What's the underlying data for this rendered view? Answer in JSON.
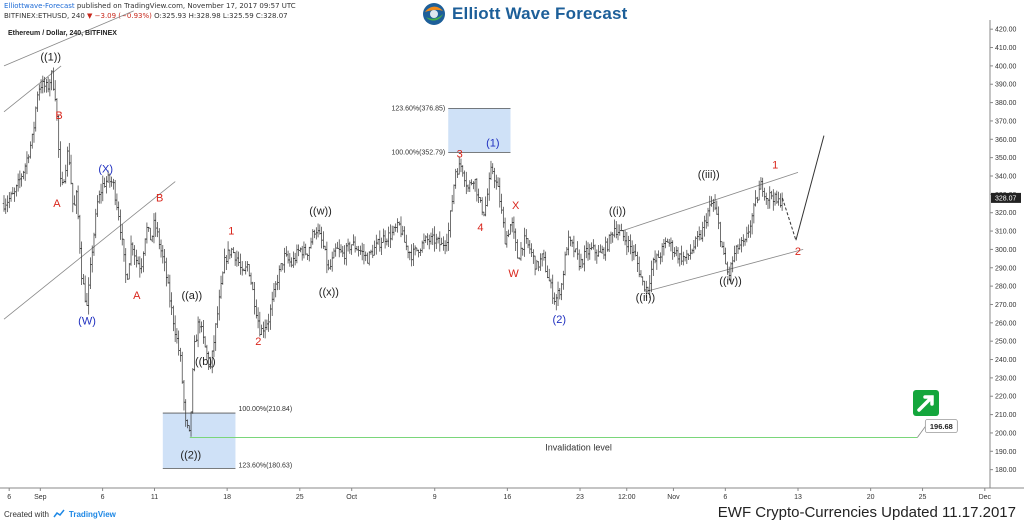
{
  "header": {
    "publisher": "Elliottwave-Forecast",
    "published_text": " published on TradingView.com, November 17, 2017 09:57 UTC",
    "ticker": "BITFINEX:ETHUSD, 240",
    "change": "▼ −3.09 (−0.93%)",
    "ohlc": "O:325.93 H:328.98 L:325.59 C:328.07"
  },
  "logo": {
    "text": "Elliott Wave Forecast"
  },
  "footer": {
    "created_with": "Created with",
    "tv_name": "TradingView",
    "title": "EWF Crypto-Currencies Updated 11.17.2017"
  },
  "colors": {
    "bull_box": "#cfe1f7",
    "wave_red": "#d9261c",
    "wave_blue": "#2030c0",
    "invalidation": "#7ad67a",
    "badge_green": "#14a63c"
  },
  "chart_data": {
    "type": "candlestick",
    "symbol_title": "Ethereum / Dollar, 240, BITFINEX",
    "ylim": [
      170,
      425
    ],
    "y_ticks": [
      180,
      190,
      200,
      210,
      220,
      230,
      240,
      250,
      260,
      270,
      280,
      290,
      300,
      310,
      320,
      330,
      340,
      350,
      360,
      370,
      380,
      390,
      400,
      410,
      420
    ],
    "y_tick_labels": [
      "180.00",
      "190.00",
      "200.00",
      "210.00",
      "220.00",
      "230.00",
      "240.00",
      "250.00",
      "260.00",
      "270.00",
      "280.00",
      "290.00",
      "300.00",
      "310.00",
      "320.00",
      "330.00",
      "340.00",
      "350.00",
      "360.00",
      "370.00",
      "380.00",
      "390.00",
      "400.00",
      "410.00",
      "420.00"
    ],
    "x_ticks": [
      {
        "label": "6",
        "x": -3
      },
      {
        "label": "Sep",
        "x": 0
      },
      {
        "label": "6",
        "x": 6
      },
      {
        "label": "11",
        "x": 11
      },
      {
        "label": "18",
        "x": 18
      },
      {
        "label": "25",
        "x": 25
      },
      {
        "label": "Oct",
        "x": 30
      },
      {
        "label": "9",
        "x": 38
      },
      {
        "label": "16",
        "x": 45
      },
      {
        "label": "23",
        "x": 52
      },
      {
        "label": "12:00",
        "x": 56.5
      },
      {
        "label": "Nov",
        "x": 61
      },
      {
        "label": "6",
        "x": 66
      },
      {
        "label": "13",
        "x": 73
      },
      {
        "label": "20",
        "x": 80
      },
      {
        "label": "25",
        "x": 85
      },
      {
        "label": "Dec",
        "x": 91
      }
    ],
    "xlim": [
      -3.5,
      91.5
    ],
    "price_path": [
      [
        -3.5,
        325
      ],
      [
        -2.5,
        330
      ],
      [
        -1.5,
        345
      ],
      [
        -0.7,
        362
      ],
      [
        -0.3,
        385
      ],
      [
        0,
        390
      ],
      [
        0.7,
        388
      ],
      [
        1.1,
        395
      ],
      [
        1.5,
        382
      ],
      [
        2,
        330
      ],
      [
        2.7,
        355
      ],
      [
        3.2,
        320
      ],
      [
        3.5,
        330
      ],
      [
        4,
        285
      ],
      [
        4.5,
        268
      ],
      [
        5,
        300
      ],
      [
        5.5,
        325
      ],
      [
        6,
        335
      ],
      [
        6.5,
        338
      ],
      [
        7,
        336
      ],
      [
        7.6,
        318
      ],
      [
        8.3,
        282
      ],
      [
        8.8,
        305
      ],
      [
        9.2,
        295
      ],
      [
        9.7,
        290
      ],
      [
        10.2,
        312
      ],
      [
        10.7,
        305
      ],
      [
        11,
        315
      ],
      [
        11.6,
        300
      ],
      [
        12,
        290
      ],
      [
        12.7,
        265
      ],
      [
        13.5,
        240
      ],
      [
        14,
        205
      ],
      [
        14.4,
        198
      ],
      [
        14.8,
        245
      ],
      [
        15.3,
        262
      ],
      [
        15.8,
        248
      ],
      [
        16.4,
        235
      ],
      [
        17,
        262
      ],
      [
        17.8,
        295
      ],
      [
        18.4,
        300
      ],
      [
        19,
        295
      ],
      [
        19.5,
        285
      ],
      [
        20,
        292
      ],
      [
        20.7,
        270
      ],
      [
        21.2,
        255
      ],
      [
        22,
        262
      ],
      [
        22.8,
        283
      ],
      [
        23.5,
        296
      ],
      [
        24.2,
        292
      ],
      [
        25,
        300
      ],
      [
        25.7,
        298
      ],
      [
        26.5,
        312
      ],
      [
        27.2,
        303
      ],
      [
        27.8,
        288
      ],
      [
        28.5,
        300
      ],
      [
        29.2,
        297
      ],
      [
        30,
        303
      ],
      [
        30.7,
        300
      ],
      [
        31.5,
        295
      ],
      [
        32.3,
        301
      ],
      [
        33,
        306
      ],
      [
        33.8,
        308
      ],
      [
        34.6,
        313
      ],
      [
        35.2,
        302
      ],
      [
        35.8,
        297
      ],
      [
        36.5,
        301
      ],
      [
        37.2,
        305
      ],
      [
        38,
        305
      ],
      [
        38.7,
        302
      ],
      [
        39.3,
        308
      ],
      [
        40,
        343
      ],
      [
        40.6,
        346
      ],
      [
        41.2,
        333
      ],
      [
        41.8,
        340
      ],
      [
        42.3,
        325
      ],
      [
        42.8,
        320
      ],
      [
        43.5,
        345
      ],
      [
        44.2,
        330
      ],
      [
        44.8,
        305
      ],
      [
        45.4,
        315
      ],
      [
        46,
        295
      ],
      [
        46.6,
        305
      ],
      [
        47.2,
        300
      ],
      [
        47.8,
        290
      ],
      [
        48.4,
        296
      ],
      [
        49,
        283
      ],
      [
        49.6,
        272
      ],
      [
        50.2,
        280
      ],
      [
        50.8,
        305
      ],
      [
        51.4,
        300
      ],
      [
        52,
        292
      ],
      [
        52.6,
        298
      ],
      [
        53.2,
        300
      ],
      [
        53.9,
        297
      ],
      [
        54.6,
        302
      ],
      [
        55.3,
        312
      ],
      [
        56,
        308
      ],
      [
        56.7,
        303
      ],
      [
        57.4,
        295
      ],
      [
        58,
        282
      ],
      [
        58.5,
        278
      ],
      [
        59,
        292
      ],
      [
        59.7,
        297
      ],
      [
        60.4,
        305
      ],
      [
        61,
        300
      ],
      [
        61.6,
        296
      ],
      [
        62.3,
        295
      ],
      [
        63,
        302
      ],
      [
        63.7,
        308
      ],
      [
        64.3,
        320
      ],
      [
        64.8,
        326
      ],
      [
        65.3,
        315
      ],
      [
        65.8,
        297
      ],
      [
        66.3,
        285
      ],
      [
        66.8,
        296
      ],
      [
        67.3,
        302
      ],
      [
        67.9,
        303
      ],
      [
        68.5,
        316
      ],
      [
        69,
        327
      ],
      [
        69.5,
        336
      ],
      [
        70,
        328
      ],
      [
        70.5,
        330
      ],
      [
        71,
        325
      ],
      [
        71.5,
        328
      ]
    ],
    "projection_dashed": [
      [
        71.5,
        328
      ],
      [
        72.8,
        305
      ]
    ],
    "projection_solid": [
      [
        72.8,
        305
      ],
      [
        75.5,
        362
      ]
    ],
    "channels": [
      {
        "from": [
          -3.5,
          375
        ],
        "to": [
          2,
          400
        ]
      },
      {
        "from": [
          -3.5,
          262
        ],
        "to": [
          13,
          337
        ]
      },
      {
        "from": [
          -3.5,
          400
        ],
        "to": [
          9,
          430
        ]
      },
      {
        "from": [
          56,
          310
        ],
        "to": [
          73,
          342
        ]
      },
      {
        "from": [
          58.3,
          277
        ],
        "to": [
          73.5,
          300
        ]
      }
    ],
    "invalidation": {
      "x1": 14.4,
      "x2": 84.5,
      "y": 197.5,
      "label": "Invalidation level",
      "price": "196.68"
    },
    "boxes": [
      {
        "x1": 11.8,
        "x2": 18.8,
        "y1": 180.63,
        "y2": 210.84,
        "top_label": "100.00%(210.84)",
        "bottom_label": "123.60%(180.63)"
      },
      {
        "x1": 39.3,
        "x2": 45.3,
        "y1": 352.79,
        "y2": 376.85,
        "top_label": "123.60%(376.85)",
        "bottom_label": "100.00%(352.79)"
      }
    ],
    "last_price_label": "328.07",
    "wave_labels": [
      {
        "text": "((1))",
        "x": 1.0,
        "y": 403,
        "color": "black"
      },
      {
        "text": "B",
        "x": 1.8,
        "y": 371,
        "color": "red"
      },
      {
        "text": "A",
        "x": 1.6,
        "y": 323,
        "color": "red"
      },
      {
        "text": "(W)",
        "x": 4.5,
        "y": 259,
        "color": "blue"
      },
      {
        "text": "(X)",
        "x": 6.3,
        "y": 342,
        "color": "blue"
      },
      {
        "text": "A",
        "x": 9.3,
        "y": 273,
        "color": "red"
      },
      {
        "text": "B",
        "x": 11.5,
        "y": 326,
        "color": "red"
      },
      {
        "text": "((a))",
        "x": 14.6,
        "y": 273,
        "color": "black"
      },
      {
        "text": "((b))",
        "x": 15.9,
        "y": 237,
        "color": "black"
      },
      {
        "text": "((2))",
        "x": 14.5,
        "y": 186,
        "color": "black"
      },
      {
        "text": "1",
        "x": 18.4,
        "y": 308,
        "color": "red"
      },
      {
        "text": "2",
        "x": 21.0,
        "y": 248,
        "color": "red"
      },
      {
        "text": "((w))",
        "x": 27.0,
        "y": 319,
        "color": "black"
      },
      {
        "text": "((x))",
        "x": 27.8,
        "y": 275,
        "color": "black"
      },
      {
        "text": "3",
        "x": 40.4,
        "y": 350,
        "color": "red"
      },
      {
        "text": "(1)",
        "x": 43.6,
        "y": 356,
        "color": "blue"
      },
      {
        "text": "4",
        "x": 42.4,
        "y": 310,
        "color": "red"
      },
      {
        "text": "X",
        "x": 45.8,
        "y": 322,
        "color": "red"
      },
      {
        "text": "W",
        "x": 45.6,
        "y": 285,
        "color": "red"
      },
      {
        "text": "(2)",
        "x": 50.0,
        "y": 260,
        "color": "blue"
      },
      {
        "text": "((i))",
        "x": 55.6,
        "y": 319,
        "color": "black"
      },
      {
        "text": "((ii))",
        "x": 58.3,
        "y": 272,
        "color": "black"
      },
      {
        "text": "((iii))",
        "x": 64.4,
        "y": 339,
        "color": "black"
      },
      {
        "text": "((iv))",
        "x": 66.5,
        "y": 281,
        "color": "black"
      },
      {
        "text": "1",
        "x": 70.8,
        "y": 344,
        "color": "red"
      },
      {
        "text": "2",
        "x": 73.0,
        "y": 297,
        "color": "red"
      }
    ]
  }
}
